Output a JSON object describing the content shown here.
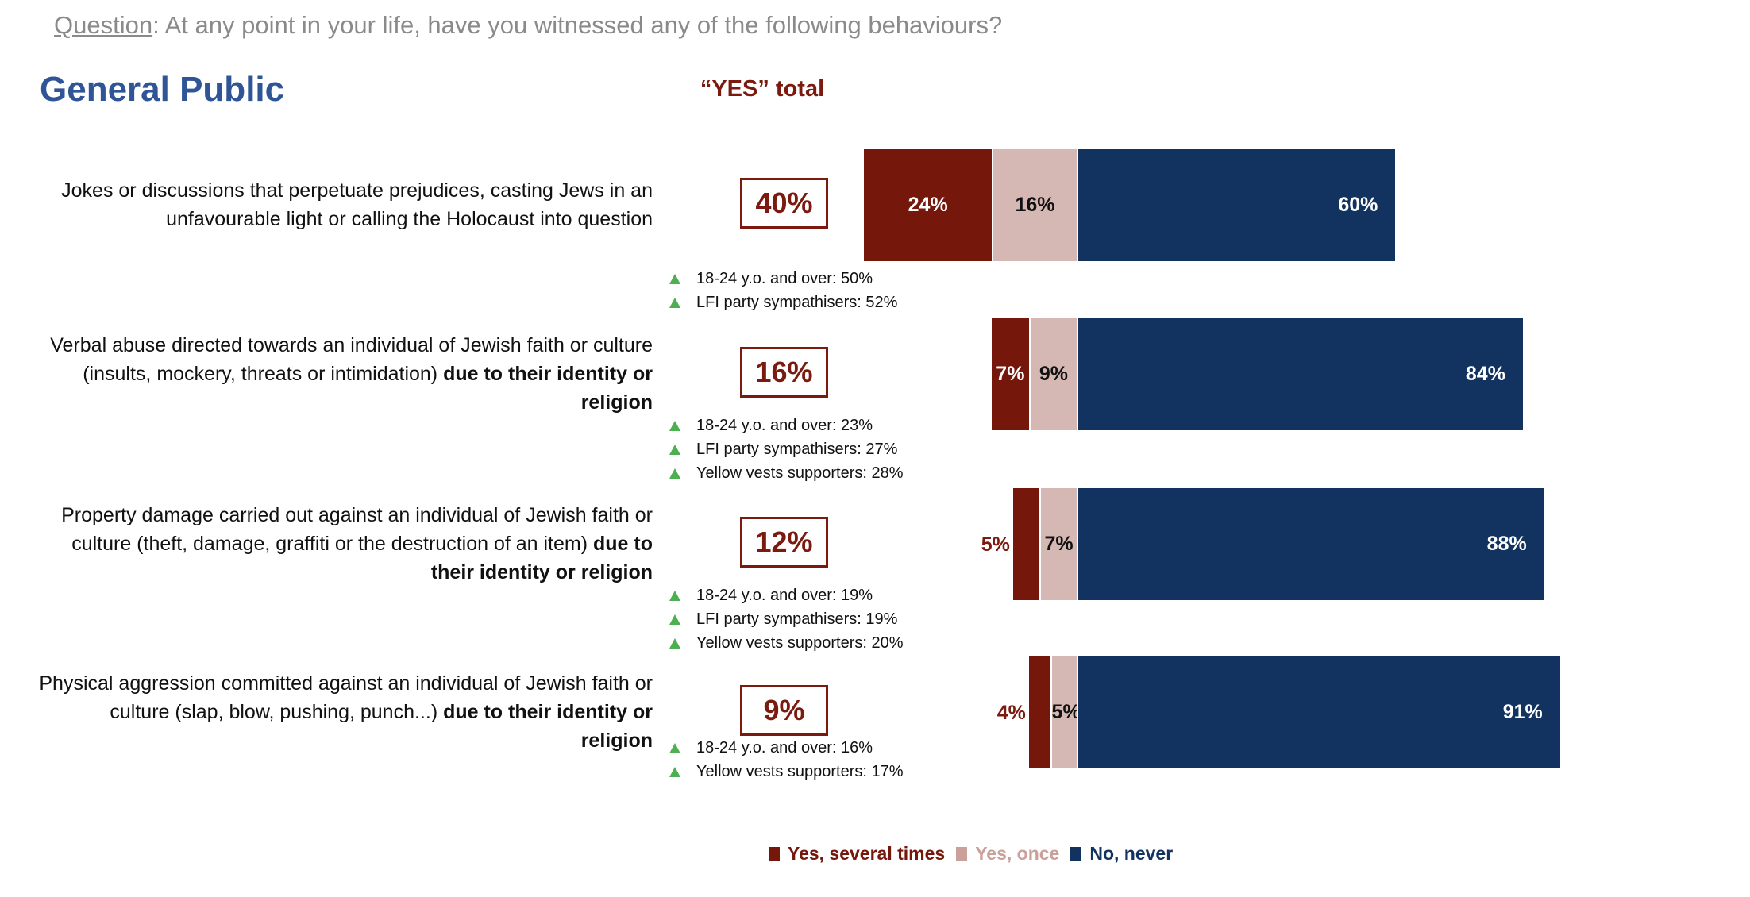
{
  "question": {
    "label": "Question",
    "text": ":  At any point in your life, have you witnessed any of the following behaviours?"
  },
  "title": "General Public",
  "yes_total_heading": "“YES” total",
  "colors": {
    "several": "#76170C",
    "once": "#D5B8B4",
    "never": "#12335F",
    "up_arrow": "#4CAF50"
  },
  "chart_data": {
    "type": "bar",
    "orientation": "horizontal-stacked",
    "categories": [
      "Jokes or discussions that perpetuate prejudices, casting Jews in an unfavourable light or calling the Holocaust into question",
      "Verbal abuse directed towards an individual of Jewish faith or culture (insults, mockery, threats or intimidation) due to their identity or religion",
      "Property damage carried out against an individual of Jewish faith or culture (theft, damage, graffiti or the destruction of an item) due to their identity or religion",
      "Physical aggression committed against an individual of Jewish faith or culture (slap, blow, pushing, punch...) due to their identity or religion"
    ],
    "series": [
      {
        "name": "Yes, several times",
        "values": [
          24,
          7,
          5,
          4
        ]
      },
      {
        "name": "Yes, once",
        "values": [
          16,
          9,
          7,
          5
        ]
      },
      {
        "name": "No, never",
        "values": [
          60,
          84,
          88,
          91
        ]
      }
    ],
    "legend_position": "bottom",
    "unit": "%"
  },
  "rows": [
    {
      "label_plain": "Jokes or discussions that perpetuate prejudices, casting Jews in an unfavourable light or calling the Holocaust into question",
      "label_bold": "",
      "total": "40%",
      "segs": [
        "24%",
        "16%",
        "60%"
      ],
      "subgroups": [
        "18-24 y.o. and over: 50%",
        "LFI party sympathisers: 52%"
      ]
    },
    {
      "label_plain": "Verbal abuse directed towards an individual of Jewish faith or culture (insults, mockery, threats or intimidation) ",
      "label_bold": "due to their identity or religion",
      "total": "16%",
      "segs": [
        "7%",
        "9%",
        "84%"
      ],
      "subgroups": [
        "18-24 y.o. and over: 23%",
        "LFI party sympathisers: 27%",
        "Yellow vests supporters: 28%"
      ]
    },
    {
      "label_plain": "Property damage carried out against an individual of Jewish faith or culture (theft, damage, graffiti or the destruction of an item) ",
      "label_bold": "due to their identity or religion",
      "total": "12%",
      "segs": [
        "5%",
        "7%",
        "88%"
      ],
      "subgroups": [
        "18-24 y.o. and over: 19%",
        "LFI party sympathisers: 19%",
        "Yellow vests supporters: 20%"
      ]
    },
    {
      "label_plain": "Physical aggression committed against an individual of Jewish faith or culture (slap, blow, pushing, punch...) ",
      "label_bold": "due to their identity or religion",
      "total": "9%",
      "segs": [
        "4%",
        "5%",
        "91%"
      ],
      "subgroups": [
        "18-24 y.o. and over: 16%",
        "Yellow vests supporters: 17%"
      ]
    }
  ],
  "legend": [
    "Yes, several times",
    "Yes, once",
    "No, never"
  ]
}
